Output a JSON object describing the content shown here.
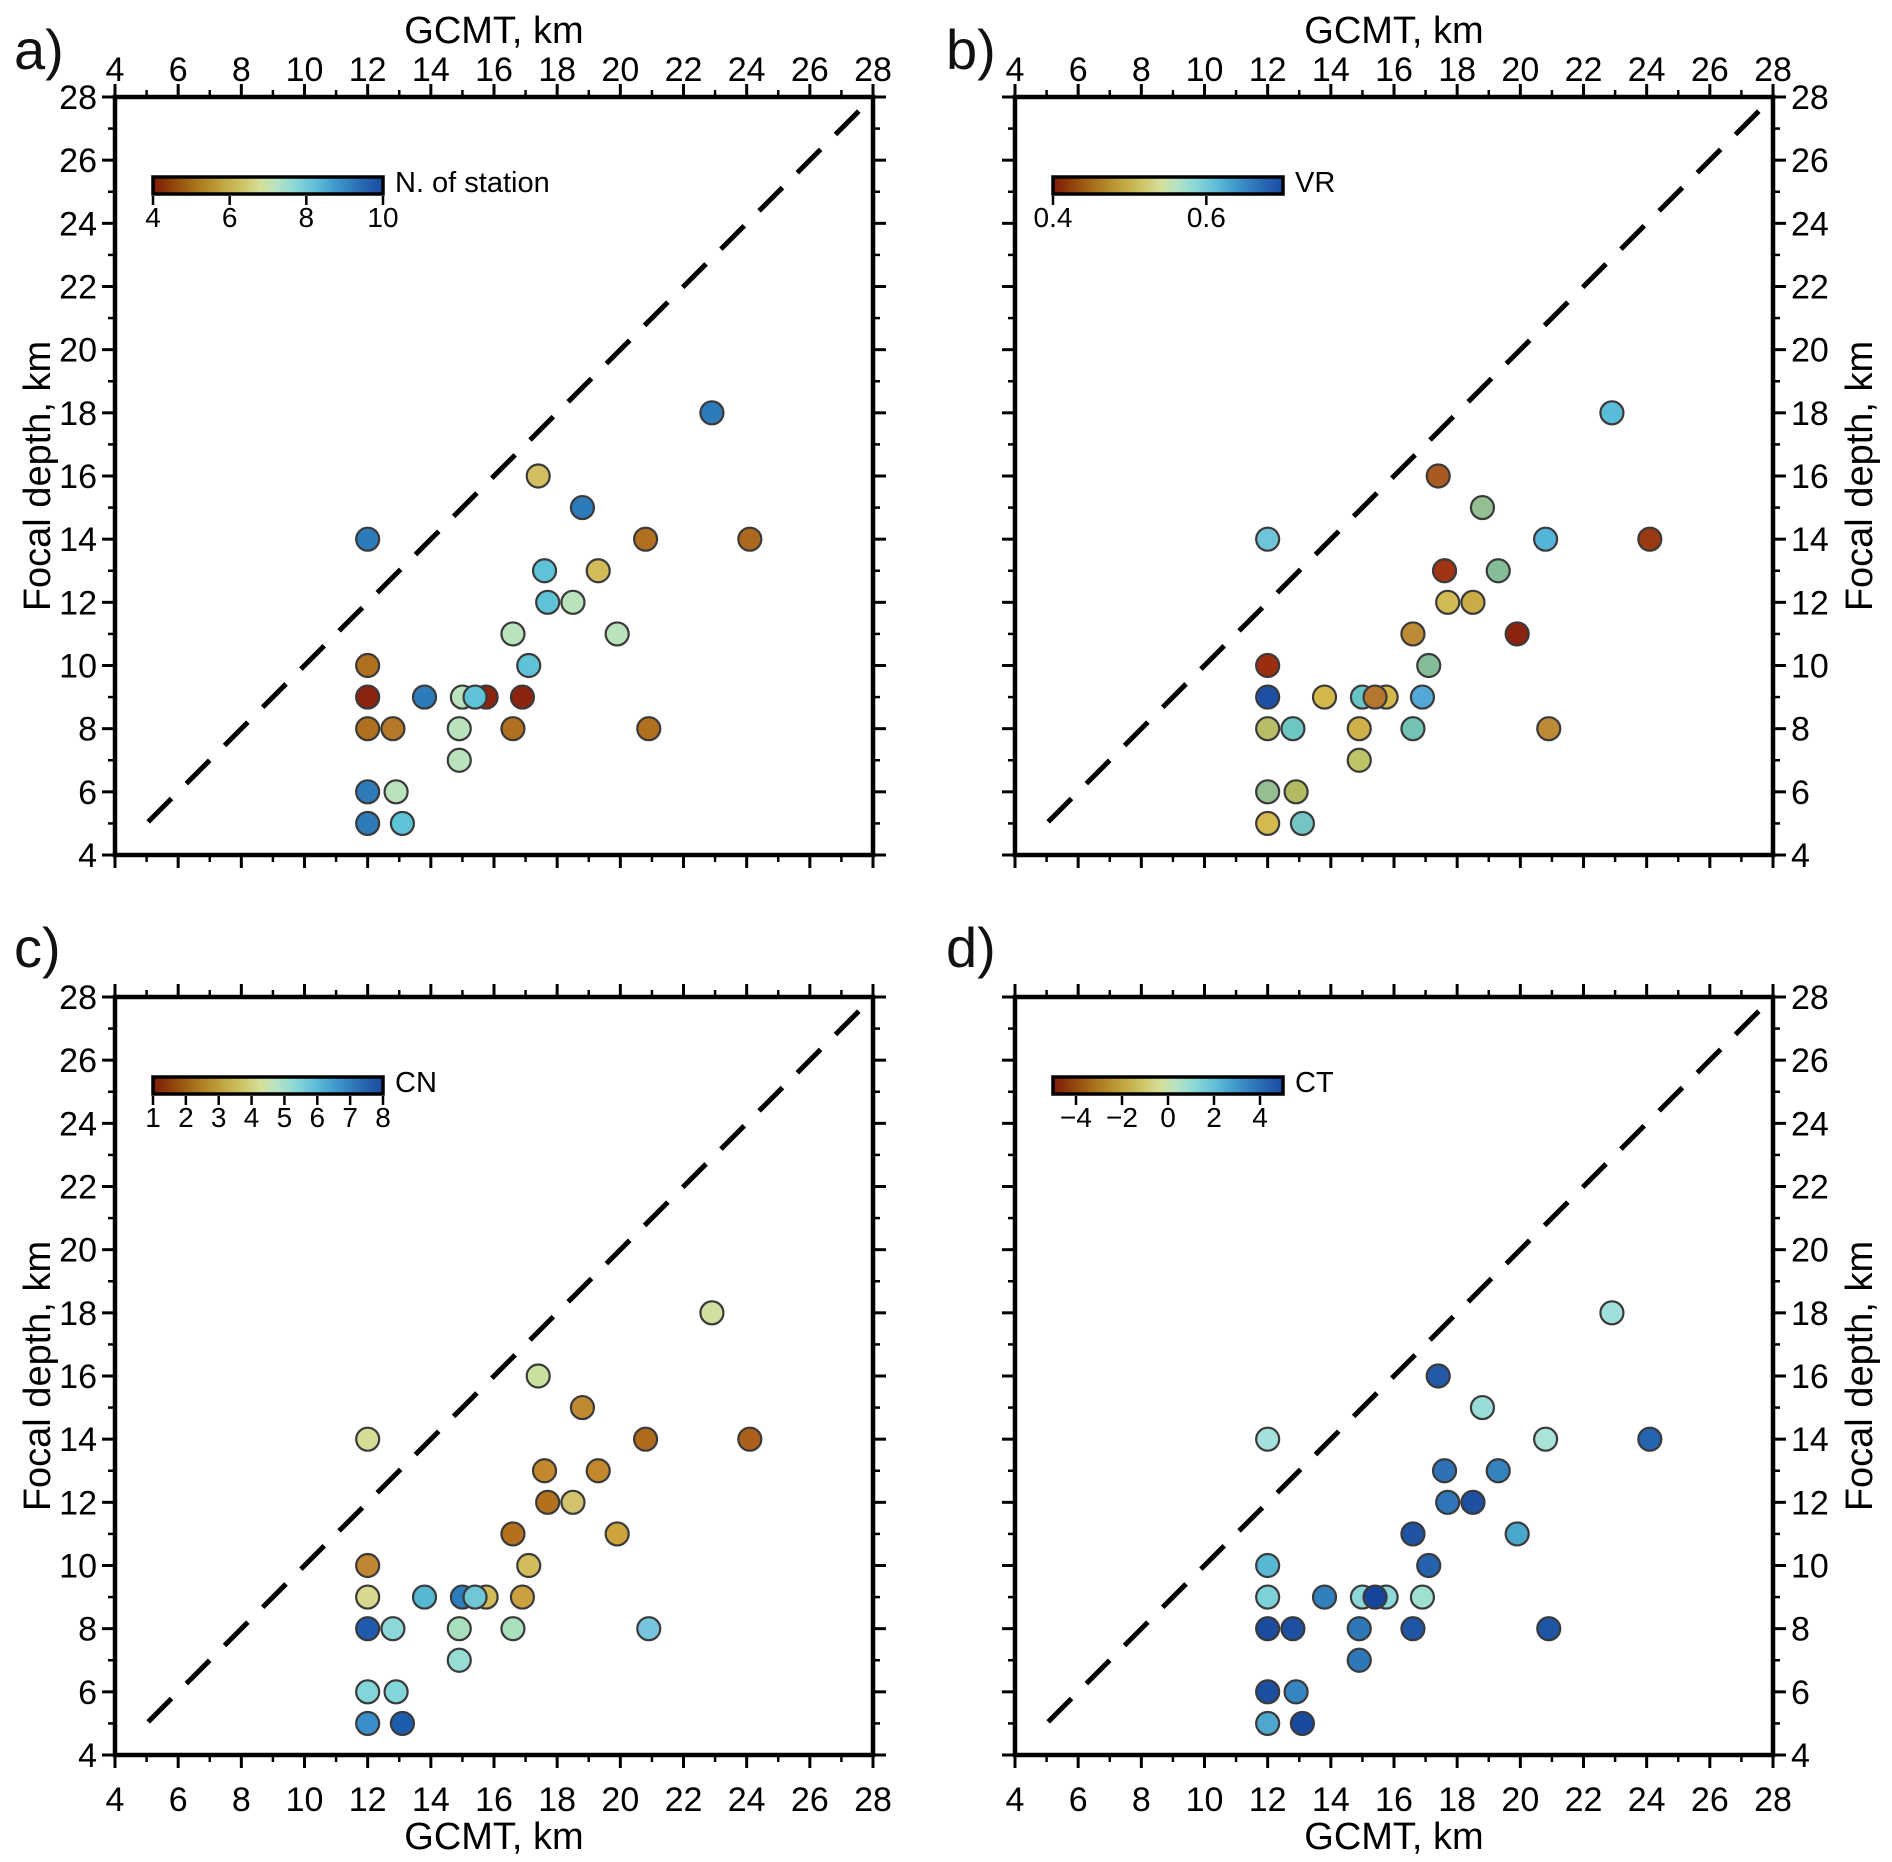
{
  "chart_data": {
    "type": "scatter",
    "xlabel": "GCMT, km",
    "ylabel": "Focal depth, km",
    "xlim": [
      4,
      28
    ],
    "ylim": [
      4,
      28
    ],
    "major_tick_step": 2,
    "minor_tick_step": 1,
    "grid": false,
    "identity_line": {
      "style": "dashed",
      "from": 5,
      "to": 28
    },
    "points": [
      {
        "x": 12.0,
        "y": 14
      },
      {
        "x": 17.4,
        "y": 16
      },
      {
        "x": 18.8,
        "y": 15
      },
      {
        "x": 22.9,
        "y": 18
      },
      {
        "x": 20.8,
        "y": 14
      },
      {
        "x": 24.1,
        "y": 14
      },
      {
        "x": 17.6,
        "y": 13
      },
      {
        "x": 19.3,
        "y": 13
      },
      {
        "x": 17.7,
        "y": 12
      },
      {
        "x": 18.5,
        "y": 12
      },
      {
        "x": 16.6,
        "y": 11
      },
      {
        "x": 19.9,
        "y": 11
      },
      {
        "x": 12.0,
        "y": 10
      },
      {
        "x": 17.1,
        "y": 10
      },
      {
        "x": 12.0,
        "y": 9
      },
      {
        "x": 13.8,
        "y": 9
      },
      {
        "x": 15.0,
        "y": 9
      },
      {
        "x": 15.75,
        "y": 9
      },
      {
        "x": 15.4,
        "y": 9
      },
      {
        "x": 16.9,
        "y": 9
      },
      {
        "x": 12.0,
        "y": 8
      },
      {
        "x": 12.8,
        "y": 8
      },
      {
        "x": 14.9,
        "y": 8
      },
      {
        "x": 16.6,
        "y": 8
      },
      {
        "x": 20.9,
        "y": 8
      },
      {
        "x": 14.9,
        "y": 7
      },
      {
        "x": 12.0,
        "y": 6
      },
      {
        "x": 12.9,
        "y": 6
      },
      {
        "x": 12.0,
        "y": 5
      },
      {
        "x": 13.1,
        "y": 5
      }
    ],
    "panels": [
      {
        "letter": "a)",
        "colorbar": {
          "label": "N. of station",
          "min": 4,
          "max": 10,
          "tick_labels": [
            "4",
            "6",
            "8",
            "10"
          ],
          "tick_values": [
            4,
            6,
            8,
            10
          ]
        },
        "point_colors": [
          "#2e7bb9",
          "#d3be62",
          "#2e7bb9",
          "#2e7bb9",
          "#b1701f",
          "#ad681f",
          "#5fc3d8",
          "#d2bb58",
          "#5fc3d8",
          "#b9e3bd",
          "#b9e3bd",
          "#b9e3bd",
          "#b1701f",
          "#5fc3d8",
          "#8c2210",
          "#2e7bb9",
          "#b9e3bd",
          "#8c2210",
          "#5fc3d8",
          "#8c2210",
          "#b1701f",
          "#b5772a",
          "#b9e3bd",
          "#b1701f",
          "#b1701f",
          "#b9e3bd",
          "#2e7bb9",
          "#b9e3bd",
          "#2e7bb9",
          "#5fc3d8"
        ]
      },
      {
        "letter": "b)",
        "colorbar": {
          "label": "VR",
          "min": 0.4,
          "max": 0.7,
          "tick_labels": [
            "0.4",
            "0.6"
          ],
          "tick_values": [
            0.4,
            0.6
          ]
        },
        "point_colors": [
          "#6ec4d8",
          "#a85a20",
          "#93bf93",
          "#59bcd8",
          "#55b4da",
          "#9a3a12",
          "#a03414",
          "#85bd98",
          "#d2ba54",
          "#cbaa48",
          "#bd8a35",
          "#8c2210",
          "#9c2e10",
          "#85bd98",
          "#1d4fa4",
          "#d4b84a",
          "#68c4c6",
          "#d4b84a",
          "#b5762f",
          "#54a8d8",
          "#b9bd66",
          "#6cc6c2",
          "#d0b048",
          "#72c2b5",
          "#bd8a35",
          "#c0c468",
          "#93bf93",
          "#b4ba60",
          "#d4b94e",
          "#74c6c4"
        ]
      },
      {
        "letter": "c)",
        "colorbar": {
          "label": "CN",
          "min": 1,
          "max": 8,
          "tick_labels": [
            "1",
            "2",
            "3",
            "4",
            "5",
            "6",
            "7",
            "8"
          ],
          "tick_values": [
            1,
            2,
            3,
            4,
            5,
            6,
            7,
            8
          ]
        },
        "point_colors": [
          "#d6dd96",
          "#c8e29e",
          "#c08a30",
          "#cfe0a0",
          "#b06a1c",
          "#ab601e",
          "#c3882c",
          "#c3882c",
          "#b4701c",
          "#d2c270",
          "#b4701c",
          "#cda43c",
          "#c08631",
          "#d2bc5c",
          "#d8d88e",
          "#55b8d0",
          "#2d7cbc",
          "#d2bc5a",
          "#70c8d6",
          "#c9a140",
          "#1f5cad",
          "#8cd8d8",
          "#a8dfbc",
          "#a8dfbc",
          "#76c4de",
          "#96ded3",
          "#82d5d8",
          "#82d5d8",
          "#3a8ec9",
          "#1d5dad"
        ]
      },
      {
        "letter": "d)",
        "colorbar": {
          "label": "CT",
          "min": -5,
          "max": 5,
          "tick_labels": [
            "−4",
            "−2",
            "0",
            "2",
            "4"
          ],
          "tick_values": [
            -4,
            -2,
            0,
            2,
            4
          ]
        },
        "point_colors": [
          "#a5e0dc",
          "#2458a8",
          "#9adcd8",
          "#a0e0da",
          "#abe3da",
          "#2565b0",
          "#2e72b5",
          "#3483bd",
          "#2e76b8",
          "#1d50a0",
          "#2153a3",
          "#48a8cc",
          "#58b8d2",
          "#2562ae",
          "#7dd2da",
          "#3080bc",
          "#8cd8da",
          "#8cd8da",
          "#17459c",
          "#9fe0d0",
          "#1b4c9e",
          "#1d50a0",
          "#2e78b8",
          "#1e55a5",
          "#1e55a5",
          "#2e78b8",
          "#1d4fa0",
          "#3586c0",
          "#4fa6ce",
          "#1a4a9e"
        ]
      }
    ],
    "colormap_gradient": [
      {
        "offset": 0.0,
        "color": "#7e1a05"
      },
      {
        "offset": 0.1,
        "color": "#944b0d"
      },
      {
        "offset": 0.2,
        "color": "#ac7a1f"
      },
      {
        "offset": 0.3,
        "color": "#c0a53e"
      },
      {
        "offset": 0.4,
        "color": "#cfc86c"
      },
      {
        "offset": 0.47,
        "color": "#d6e09c"
      },
      {
        "offset": 0.54,
        "color": "#b4e2c6"
      },
      {
        "offset": 0.62,
        "color": "#8ad8d8"
      },
      {
        "offset": 0.7,
        "color": "#62c0d8"
      },
      {
        "offset": 0.8,
        "color": "#3f97cb"
      },
      {
        "offset": 0.9,
        "color": "#2a6db3"
      },
      {
        "offset": 1.0,
        "color": "#1b4aa2"
      }
    ]
  }
}
